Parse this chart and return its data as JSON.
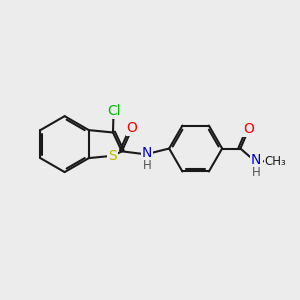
{
  "bg_color": "#ececec",
  "bond_color": "#1a1a1a",
  "bond_width": 1.5,
  "atom_colors": {
    "Cl": "#00bb00",
    "S": "#bbbb00",
    "O": "#ff0000",
    "N": "#0000cc",
    "H": "#555555",
    "C": "#1a1a1a"
  },
  "font_size": 10,
  "small_font_size": 8.5
}
